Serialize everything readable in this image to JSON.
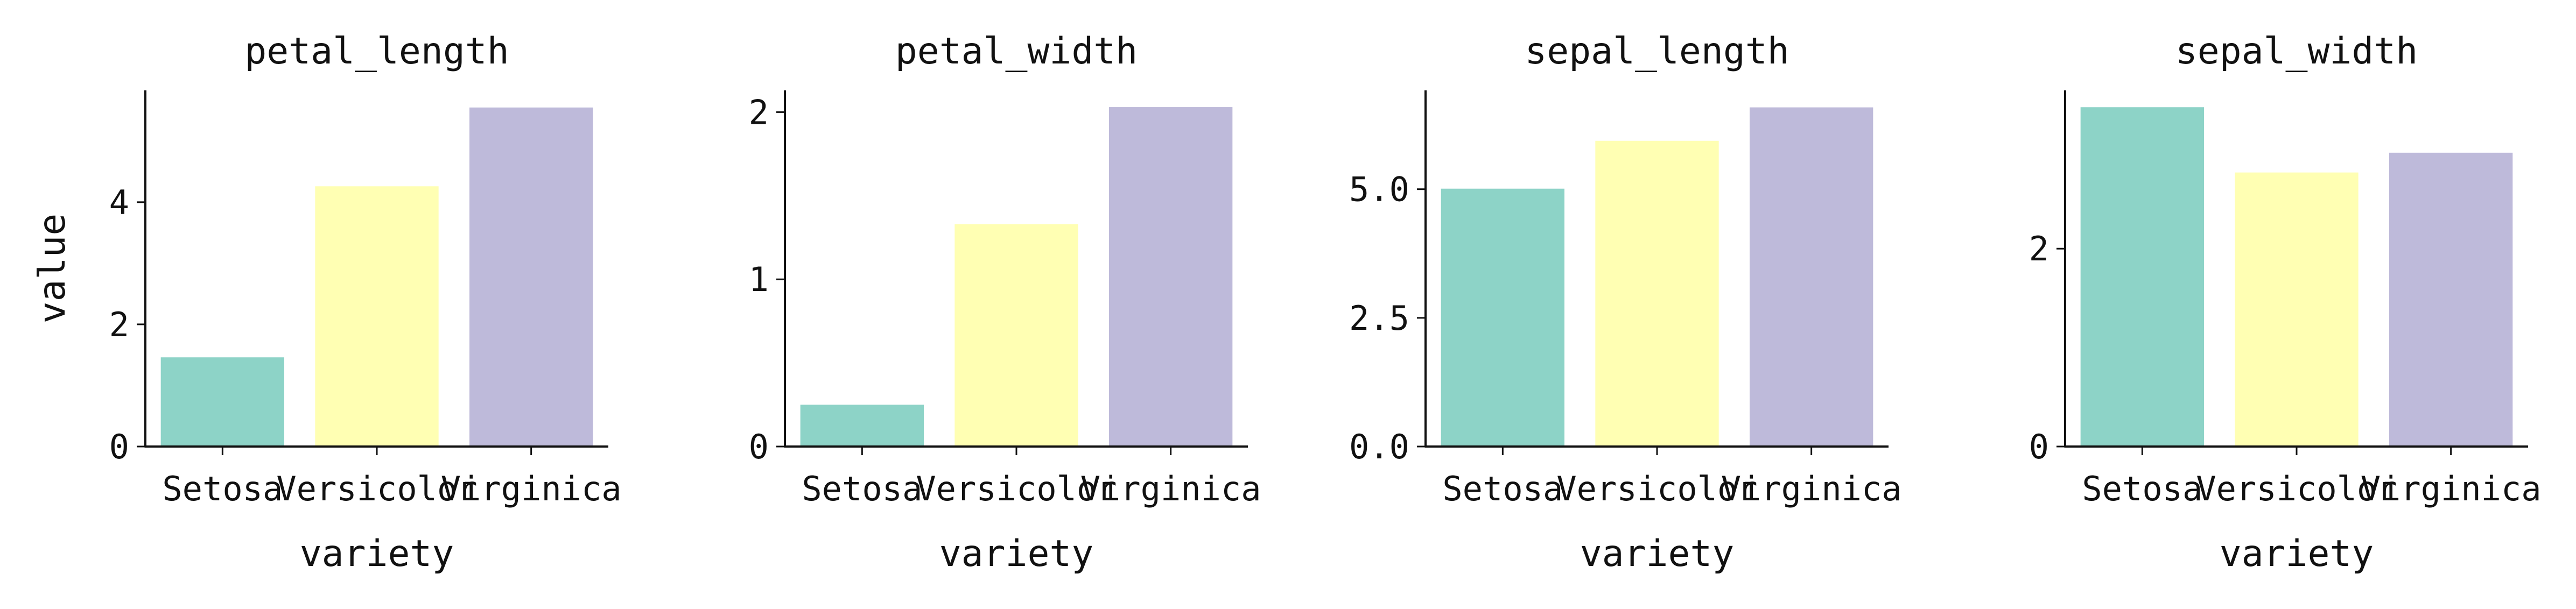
{
  "chart_data": [
    {
      "type": "bar",
      "title": "petal_length",
      "xlabel": "variety",
      "ylabel": "value",
      "categories": [
        "Setosa",
        "Versicolor",
        "Virginica"
      ],
      "values": [
        1.46,
        4.26,
        5.55
      ],
      "ylim": [
        0,
        5.83
      ],
      "yticks": [
        0,
        2,
        4
      ],
      "ytick_labels": [
        "0",
        "2",
        "4"
      ],
      "colors": [
        "#8dd3c7",
        "#ffffb3",
        "#bebada"
      ],
      "grid": false,
      "legend": "none"
    },
    {
      "type": "bar",
      "title": "petal_width",
      "xlabel": "variety",
      "ylabel": "",
      "categories": [
        "Setosa",
        "Versicolor",
        "Virginica"
      ],
      "values": [
        0.25,
        1.33,
        2.03
      ],
      "ylim": [
        0,
        2.13
      ],
      "yticks": [
        0,
        1,
        2
      ],
      "ytick_labels": [
        "0",
        "1",
        "2"
      ],
      "colors": [
        "#8dd3c7",
        "#ffffb3",
        "#bebada"
      ],
      "grid": false,
      "legend": "none"
    },
    {
      "type": "bar",
      "title": "sepal_length",
      "xlabel": "variety",
      "ylabel": "",
      "categories": [
        "Setosa",
        "Versicolor",
        "Virginica"
      ],
      "values": [
        5.01,
        5.94,
        6.59
      ],
      "ylim": [
        0,
        6.92
      ],
      "yticks": [
        0,
        2.5,
        5
      ],
      "ytick_labels": [
        "0.0",
        "2.5",
        "5.0"
      ],
      "colors": [
        "#8dd3c7",
        "#ffffb3",
        "#bebada"
      ],
      "grid": false,
      "legend": "none"
    },
    {
      "type": "bar",
      "title": "sepal_width",
      "xlabel": "variety",
      "ylabel": "",
      "categories": [
        "Setosa",
        "Versicolor",
        "Virginica"
      ],
      "values": [
        3.43,
        2.77,
        2.97
      ],
      "ylim": [
        0,
        3.6
      ],
      "yticks": [
        0,
        2
      ],
      "ytick_labels": [
        "0",
        "2"
      ],
      "colors": [
        "#8dd3c7",
        "#ffffb3",
        "#bebada"
      ],
      "grid": false,
      "legend": "none"
    }
  ]
}
